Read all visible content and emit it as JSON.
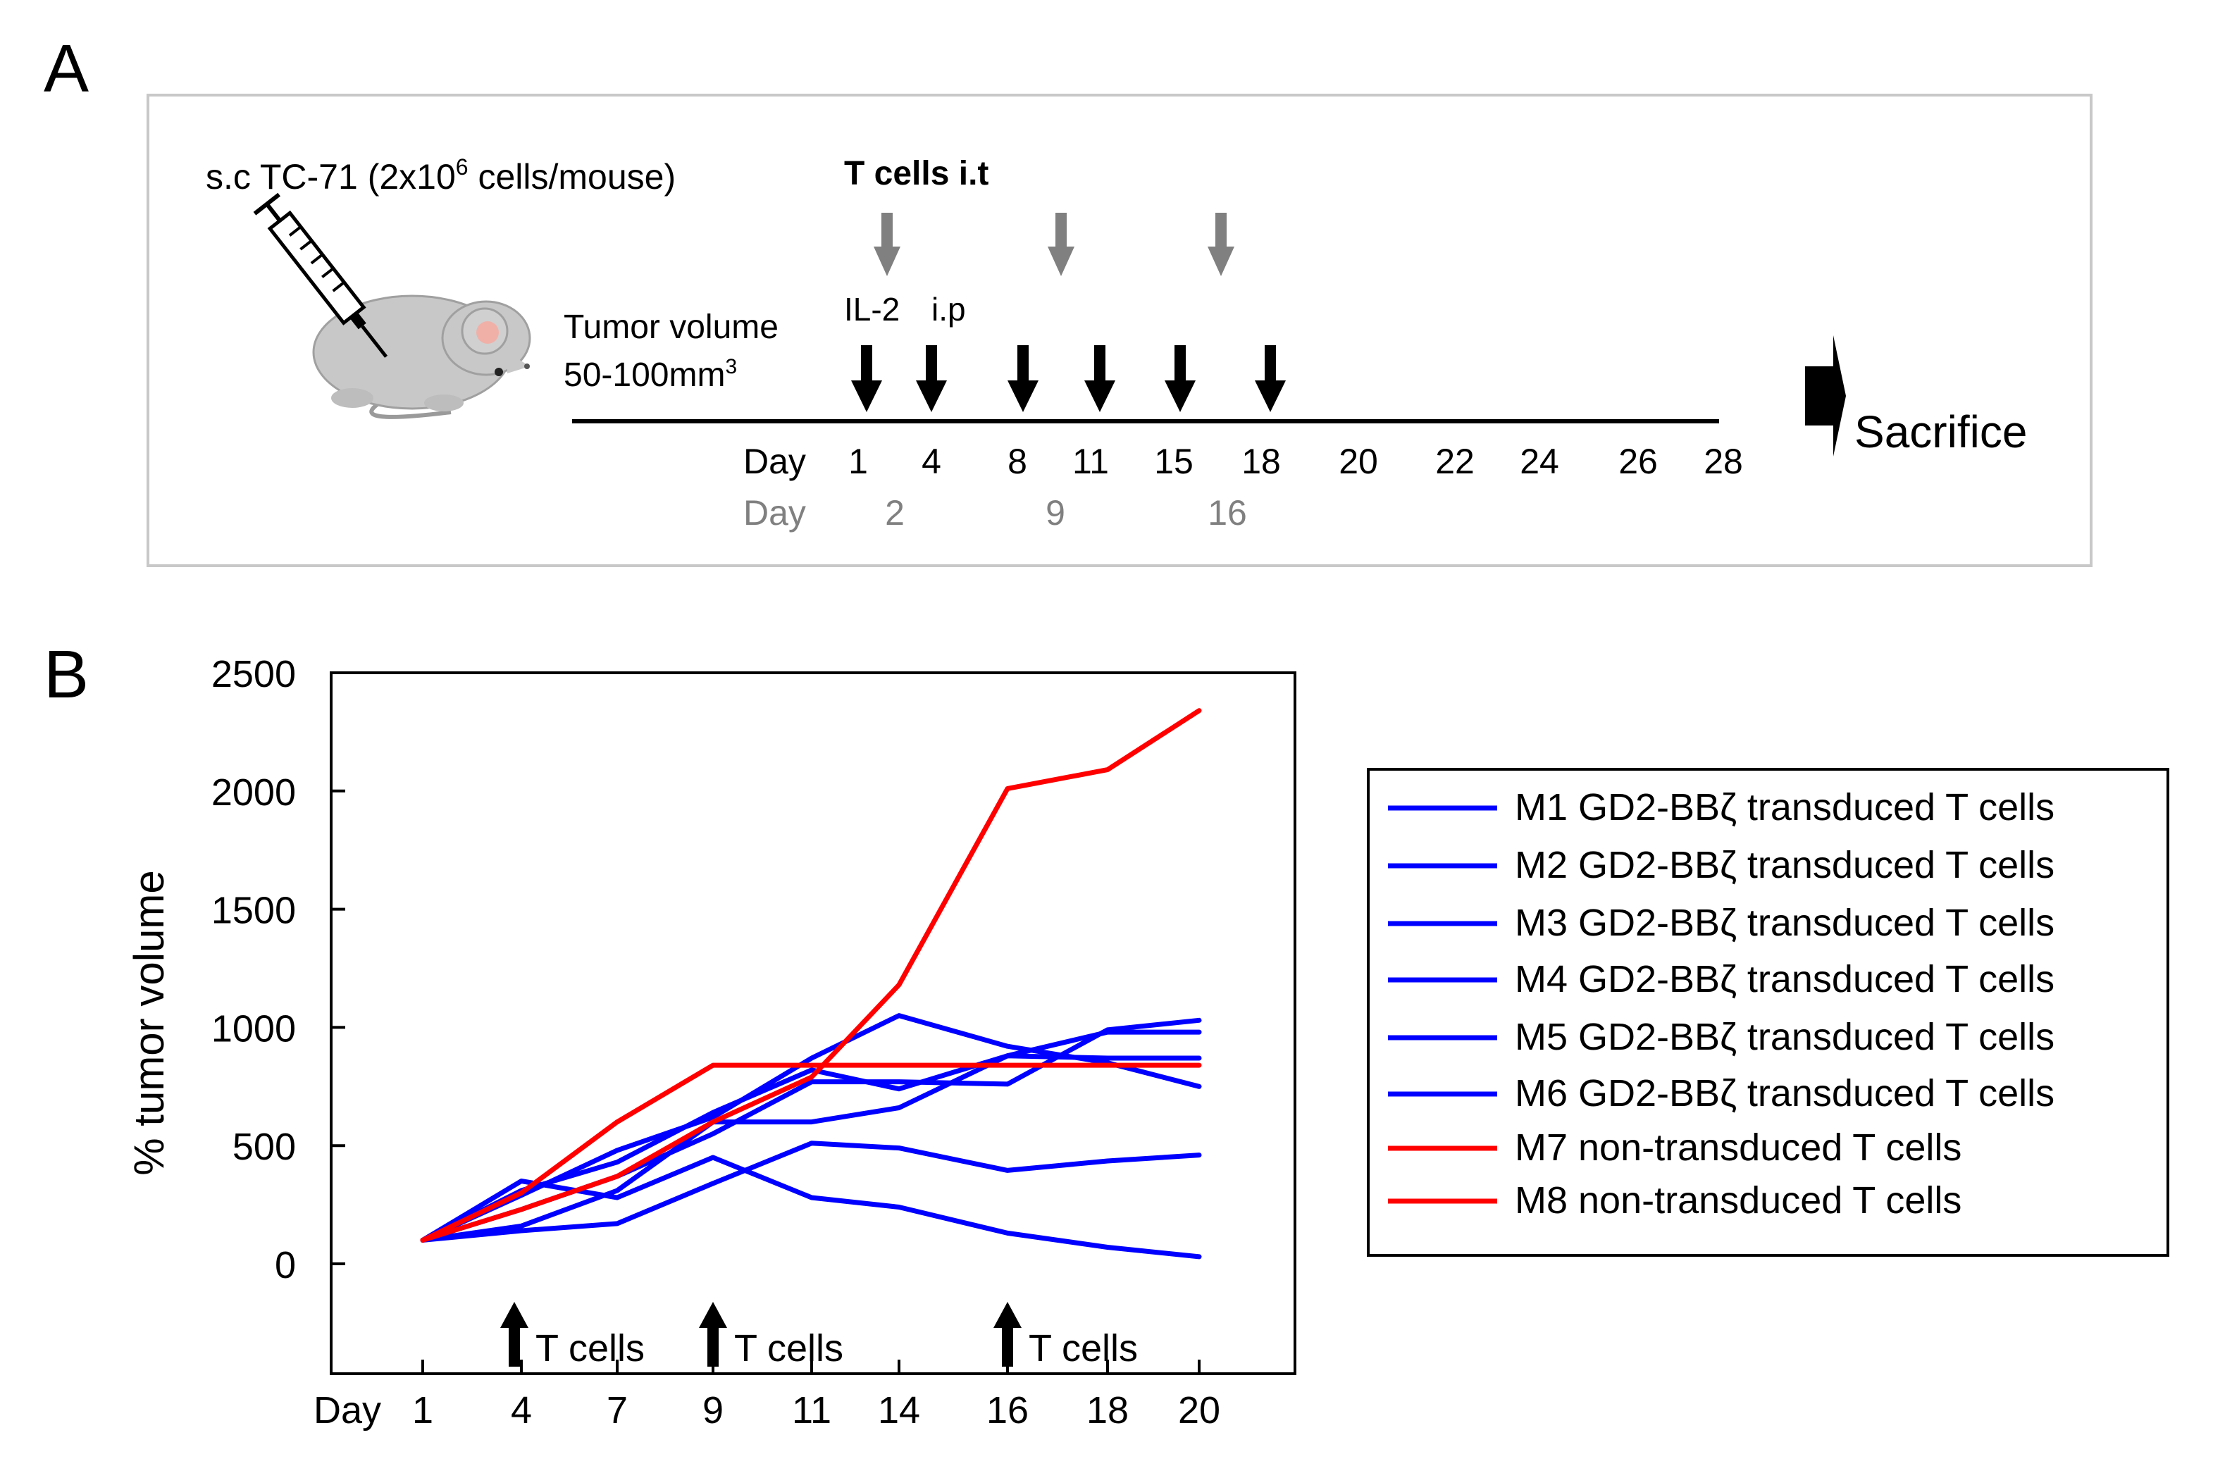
{
  "panelA": {
    "label": "A",
    "injection": {
      "prefix": "s.c TC-71 (2x10",
      "sup": "6",
      "suffix": " cells/mouse)"
    },
    "tumor_volume_line1": "Tumor volume",
    "tumor_volume_line2_prefix": "50-100mm",
    "tumor_volume_sup": "3",
    "t_cells_title": "T cells i.t",
    "il2_label": "IL-2",
    "ip_label": "i.p",
    "day_word": "Day",
    "days_top": [
      "1",
      "4",
      "8",
      "11",
      "15",
      "18",
      "20",
      "22",
      "24",
      "26",
      "28"
    ],
    "days_bottom": [
      "2",
      "9",
      "16"
    ],
    "sacrifice": "Sacrifice",
    "colors": {
      "gray_arrow": "#808080",
      "gray_text": "#808080",
      "frame": "#c8c8c8"
    }
  },
  "panelB": {
    "label": "B",
    "legend": [
      {
        "name": "M1 GD2-BBζ transduced T cells",
        "color": "#0000ff"
      },
      {
        "name": "M2 GD2-BBζ transduced T cells",
        "color": "#0000ff"
      },
      {
        "name": "M3 GD2-BBζ transduced T cells",
        "color": "#0000ff"
      },
      {
        "name": "M4 GD2-BBζ transduced T cells",
        "color": "#0000ff"
      },
      {
        "name": "M5 GD2-BBζ transduced T cells",
        "color": "#0000ff"
      },
      {
        "name": "M6 GD2-BBζ transduced T cells",
        "color": "#0000ff"
      },
      {
        "name": "M7 non-transduced T cells",
        "color": "#ff0000"
      },
      {
        "name": "M8 non-transduced T cells",
        "color": "#ff0000"
      }
    ]
  },
  "chart_data": {
    "type": "line",
    "title": "",
    "xlabel": "Day",
    "ylabel": "% tumor volume",
    "categories": [
      "1",
      "4",
      "7",
      "9",
      "11",
      "14",
      "16",
      "18",
      "20"
    ],
    "ylim": [
      -450,
      2500
    ],
    "yticks": [
      0,
      500,
      1000,
      1500,
      2000,
      2500
    ],
    "grid": false,
    "legend_position": "right",
    "annotations": [
      {
        "label": "T cells",
        "at_category_index": 0.5
      },
      {
        "label": "T cells",
        "at_category_index": 3
      },
      {
        "label": "T cells",
        "at_category_index": 6
      }
    ],
    "series": [
      {
        "name": "M1 GD2-BBζ transduced T cells",
        "color": "#0000ff",
        "values": [
          100,
          350,
          280,
          450,
          280,
          240,
          130,
          70,
          30
        ]
      },
      {
        "name": "M2 GD2-BBζ transduced T cells",
        "color": "#0000ff",
        "values": [
          100,
          140,
          170,
          340,
          510,
          490,
          395,
          435,
          460
        ]
      },
      {
        "name": "M3 GD2-BBζ transduced T cells",
        "color": "#0000ff",
        "values": [
          100,
          160,
          310,
          600,
          600,
          660,
          880,
          980,
          980
        ]
      },
      {
        "name": "M4 GD2-BBζ transduced T cells",
        "color": "#0000ff",
        "values": [
          100,
          290,
          480,
          620,
          870,
          1050,
          920,
          850,
          750
        ]
      },
      {
        "name": "M5 GD2-BBζ transduced T cells",
        "color": "#0000ff",
        "values": [
          100,
          230,
          370,
          550,
          770,
          770,
          760,
          990,
          1030
        ]
      },
      {
        "name": "M6 GD2-BBζ transduced T cells",
        "color": "#0000ff",
        "values": [
          100,
          310,
          430,
          640,
          820,
          740,
          880,
          870,
          870
        ]
      },
      {
        "name": "M7 non-transduced T cells",
        "color": "#ff0000",
        "values": [
          100,
          230,
          370,
          600,
          790,
          1180,
          2010,
          2090,
          2340
        ]
      },
      {
        "name": "M8 non-transduced T cells",
        "color": "#ff0000",
        "values": [
          100,
          300,
          600,
          840,
          840,
          840,
          840,
          840,
          840
        ]
      }
    ]
  }
}
